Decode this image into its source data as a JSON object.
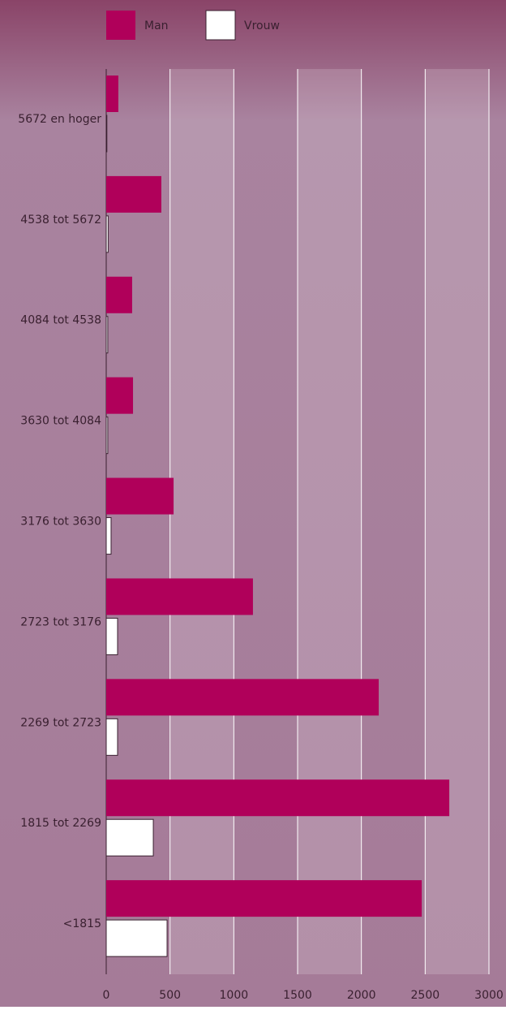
{
  "chart_data": {
    "type": "bar",
    "orientation": "horizontal",
    "categories": [
      "5672 en hoger",
      "4538 tot 5672",
      "4084 tot 4538",
      "3630 tot 4084",
      "3176 tot 3630",
      "2723 tot 3176",
      "2269 tot 2723",
      "1815 tot 2269",
      "<1815"
    ],
    "series": [
      {
        "name": "Man",
        "color": "#b0005a",
        "values": [
          95,
          432,
          203,
          210,
          528,
          1150,
          2136,
          2689,
          2473
        ]
      },
      {
        "name": "Vrouw",
        "color": "#ffffff",
        "values": [
          5,
          15,
          12,
          12,
          38,
          89,
          89,
          369,
          477
        ]
      }
    ],
    "xlim": [
      0,
      3000
    ],
    "xticks": [
      0,
      500,
      1000,
      1500,
      2000,
      2500,
      3000
    ],
    "grid": true,
    "legend": "top"
  }
}
